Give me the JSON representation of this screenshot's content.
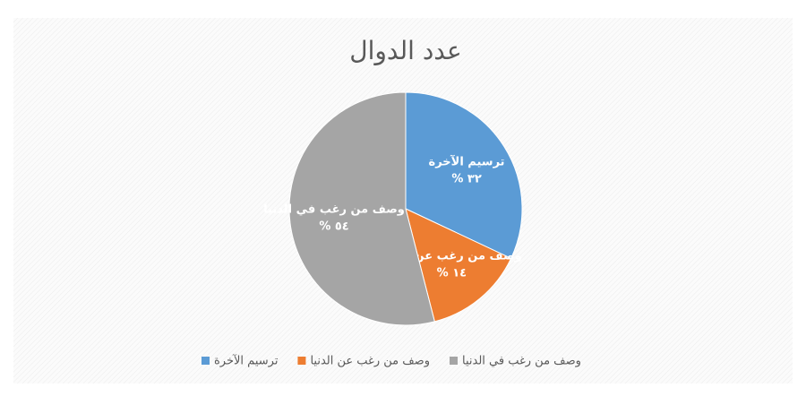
{
  "chart_data": {
    "type": "pie",
    "title": "عدد الدوال",
    "categories": [
      "ترسيم الآخرة",
      "وصف من رغب عن الدنيا",
      "وصف من رغب في الدنيا"
    ],
    "values": [
      32,
      14,
      54
    ],
    "value_labels": [
      "٣٢ %",
      "١٤ %",
      "٥٤ %"
    ],
    "colors": [
      "#5b9bd5",
      "#ed7d31",
      "#a5a5a5"
    ],
    "legend": "bottom"
  }
}
